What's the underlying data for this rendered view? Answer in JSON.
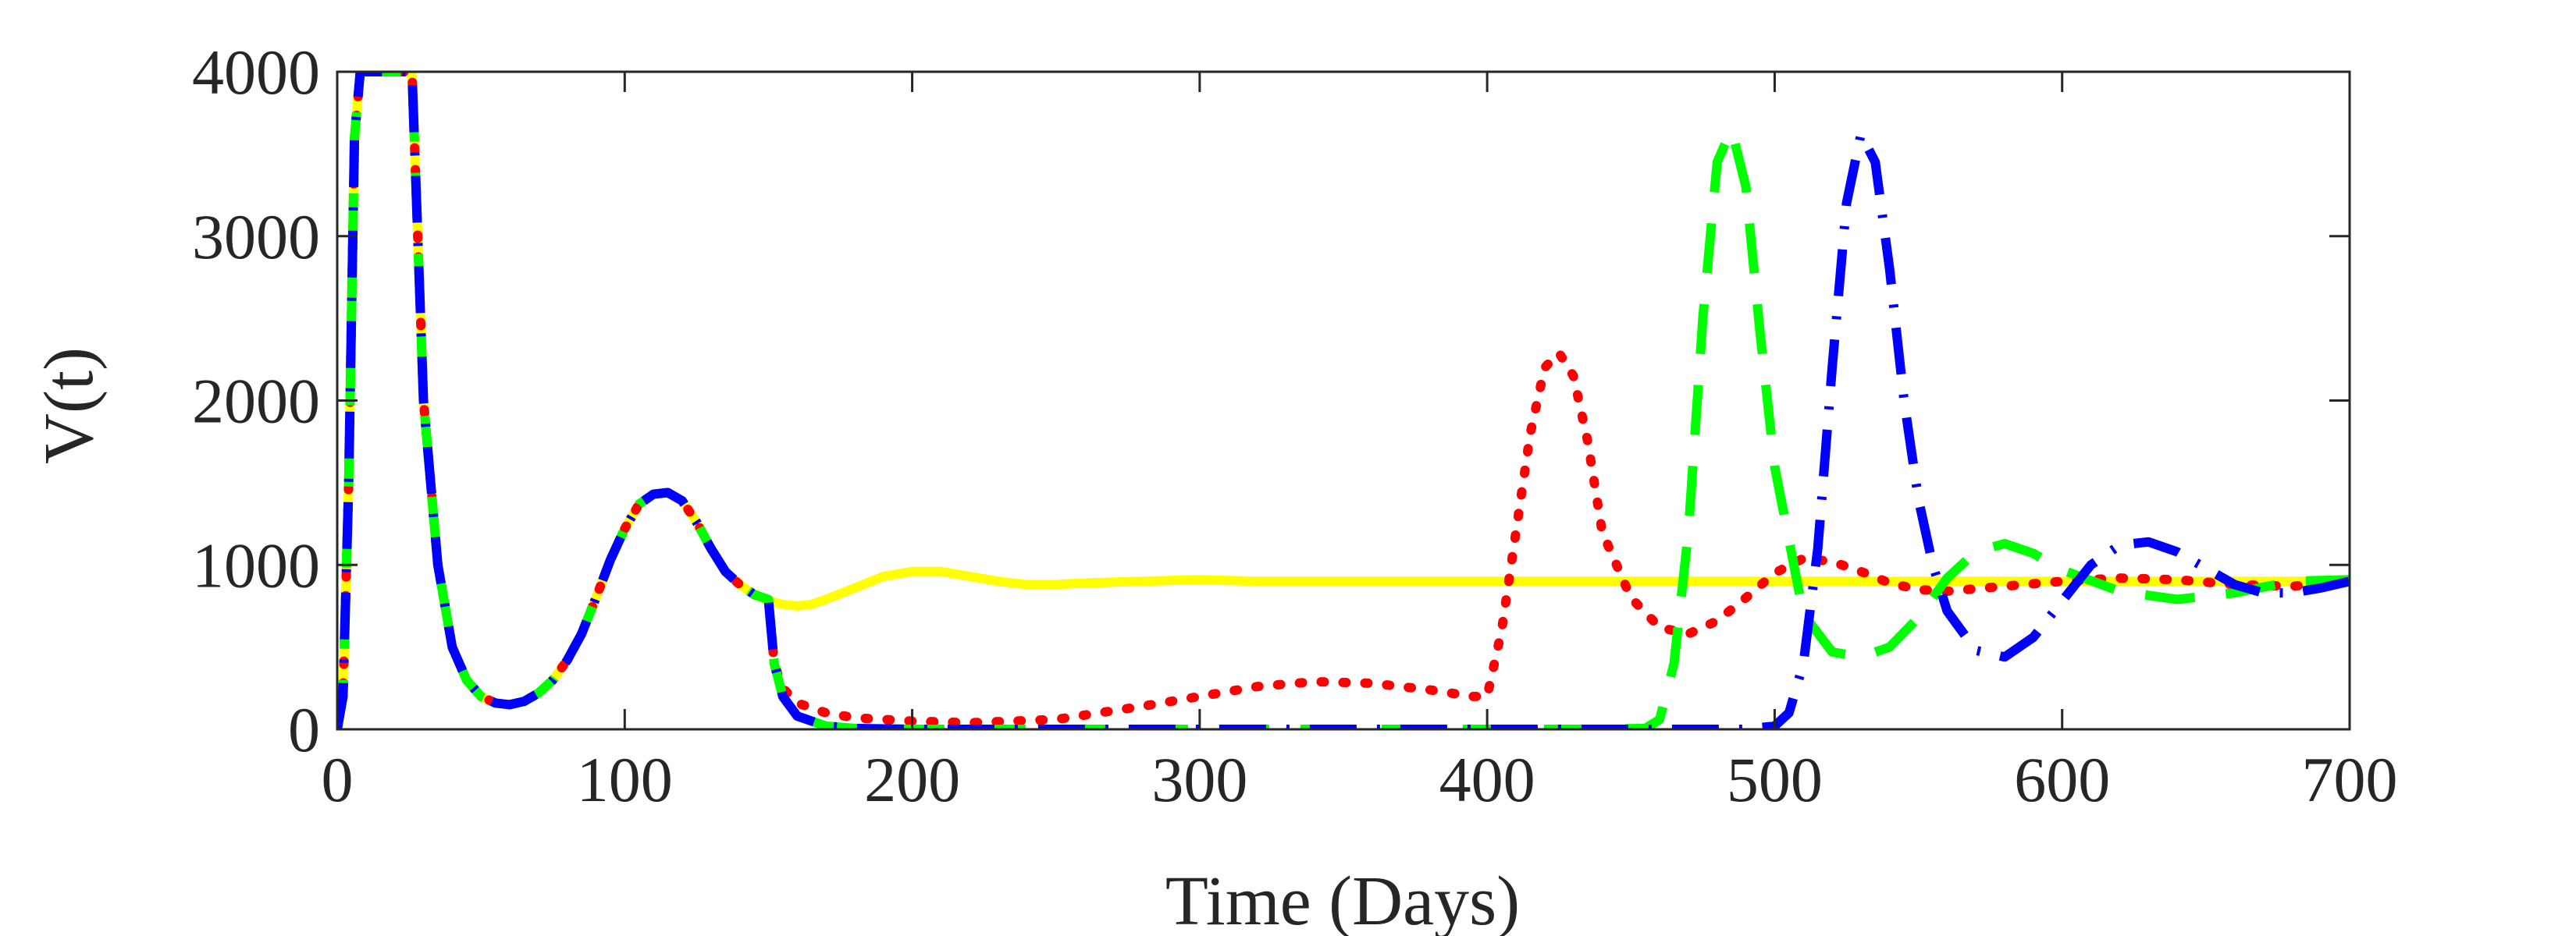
{
  "chart_data": {
    "type": "line",
    "title": "",
    "xlabel": "Time (Days)",
    "ylabel": "V(t)",
    "xlim": [
      0,
      700
    ],
    "ylim": [
      0,
      4000
    ],
    "xticks": [
      0,
      100,
      200,
      300,
      400,
      500,
      600,
      700
    ],
    "xtick_labels": [
      "0",
      "100",
      "200",
      "300",
      "400",
      "500",
      "600",
      "700"
    ],
    "yticks": [
      0,
      1000,
      2000,
      3000,
      4000
    ],
    "ytick_labels": [
      "0",
      "1000",
      "2000",
      "3000",
      "4000"
    ],
    "grid": false,
    "legend": "none",
    "series": [
      {
        "color": "#ffff00",
        "style": "solid",
        "x": [
          0,
          2,
          4,
          6,
          8,
          10,
          15,
          22,
          26,
          30,
          35,
          40,
          45,
          50,
          55,
          60,
          65,
          70,
          75,
          80,
          85,
          90,
          95,
          100,
          105,
          110,
          115,
          120,
          125,
          130,
          135,
          140,
          145,
          148,
          150,
          155,
          160,
          165,
          170,
          180,
          190,
          200,
          210,
          220,
          230,
          240,
          250,
          260,
          280,
          300,
          320,
          350,
          400,
          450,
          500,
          550,
          600,
          650,
          700
        ],
        "y": [
          0,
          200,
          1500,
          3600,
          4000,
          4000,
          4000,
          4000,
          4000,
          2000,
          1000,
          500,
          300,
          200,
          160,
          150,
          170,
          220,
          300,
          420,
          580,
          800,
          1030,
          1220,
          1370,
          1430,
          1440,
          1390,
          1260,
          1100,
          960,
          880,
          820,
          800,
          780,
          760,
          750,
          760,
          790,
          860,
          930,
          960,
          960,
          930,
          900,
          880,
          880,
          890,
          900,
          910,
          900,
          900,
          900,
          900,
          900,
          900,
          900,
          900,
          900
        ]
      },
      {
        "color": "#ff0000",
        "style": "dotted",
        "x": [
          0,
          2,
          4,
          6,
          8,
          10,
          15,
          22,
          26,
          30,
          35,
          40,
          45,
          50,
          55,
          60,
          65,
          70,
          75,
          80,
          85,
          90,
          95,
          100,
          105,
          110,
          115,
          120,
          125,
          130,
          135,
          140,
          145,
          150,
          152,
          155,
          160,
          170,
          180,
          200,
          220,
          250,
          280,
          300,
          320,
          340,
          360,
          380,
          395,
          400,
          405,
          410,
          415,
          420,
          425,
          430,
          435,
          440,
          450,
          460,
          470,
          480,
          490,
          500,
          510,
          520,
          530,
          540,
          550,
          560,
          580,
          600,
          620,
          640,
          660,
          680,
          700
        ],
        "y": [
          0,
          200,
          1500,
          3600,
          4000,
          4000,
          4000,
          4000,
          4000,
          2000,
          1000,
          500,
          300,
          200,
          160,
          150,
          170,
          220,
          300,
          420,
          580,
          800,
          1030,
          1220,
          1370,
          1430,
          1440,
          1390,
          1260,
          1100,
          960,
          880,
          820,
          790,
          400,
          250,
          160,
          100,
          70,
          50,
          40,
          60,
          140,
          200,
          260,
          290,
          280,
          240,
          200,
          200,
          600,
          1200,
          1800,
          2200,
          2290,
          2150,
          1750,
          1200,
          800,
          620,
          580,
          660,
          800,
          950,
          1040,
          1020,
          960,
          890,
          850,
          840,
          870,
          900,
          920,
          910,
          880,
          870,
          900
        ]
      },
      {
        "color": "#00ff00",
        "style": "dashed",
        "x": [
          0,
          2,
          4,
          6,
          8,
          10,
          15,
          22,
          26,
          30,
          35,
          40,
          45,
          50,
          55,
          60,
          65,
          70,
          75,
          80,
          85,
          90,
          95,
          100,
          105,
          110,
          115,
          120,
          125,
          130,
          135,
          140,
          145,
          150,
          152,
          155,
          160,
          170,
          180,
          200,
          250,
          300,
          350,
          400,
          440,
          455,
          460,
          465,
          470,
          475,
          480,
          485,
          490,
          495,
          500,
          510,
          520,
          530,
          540,
          550,
          560,
          570,
          580,
          590,
          600,
          620,
          640,
          660,
          680,
          700
        ],
        "y": [
          0,
          200,
          1500,
          3600,
          4000,
          4000,
          4000,
          4000,
          4000,
          2000,
          1000,
          500,
          300,
          200,
          160,
          150,
          170,
          220,
          300,
          420,
          580,
          800,
          1030,
          1220,
          1370,
          1430,
          1440,
          1390,
          1260,
          1100,
          960,
          880,
          820,
          790,
          400,
          200,
          80,
          20,
          5,
          0,
          0,
          0,
          0,
          0,
          0,
          5,
          60,
          400,
          1200,
          2500,
          3450,
          3650,
          3300,
          2400,
          1600,
          700,
          470,
          440,
          500,
          680,
          920,
          1080,
          1130,
          1070,
          970,
          840,
          790,
          830,
          900,
          910
        ]
      },
      {
        "color": "#0000ff",
        "style": "dashdot",
        "x": [
          0,
          2,
          4,
          6,
          8,
          10,
          15,
          22,
          26,
          30,
          35,
          40,
          45,
          50,
          55,
          60,
          65,
          70,
          75,
          80,
          85,
          90,
          95,
          100,
          105,
          110,
          115,
          120,
          125,
          130,
          135,
          140,
          145,
          150,
          152,
          155,
          160,
          170,
          180,
          200,
          250,
          300,
          350,
          400,
          450,
          490,
          500,
          505,
          510,
          515,
          520,
          525,
          530,
          535,
          540,
          545,
          550,
          555,
          560,
          570,
          580,
          590,
          600,
          610,
          620,
          630,
          640,
          650,
          660,
          670,
          680,
          690,
          700
        ],
        "y": [
          0,
          200,
          1500,
          3600,
          4000,
          4000,
          4000,
          4000,
          4000,
          2000,
          1000,
          500,
          300,
          200,
          160,
          150,
          170,
          220,
          300,
          420,
          580,
          800,
          1030,
          1220,
          1370,
          1430,
          1440,
          1390,
          1260,
          1100,
          960,
          880,
          820,
          790,
          400,
          200,
          80,
          20,
          5,
          0,
          0,
          0,
          0,
          0,
          0,
          0,
          20,
          100,
          400,
          1100,
          2200,
          3200,
          3620,
          3450,
          2800,
          2000,
          1400,
          1000,
          720,
          480,
          440,
          560,
          780,
          1000,
          1120,
          1140,
          1080,
          980,
          880,
          830,
          830,
          860,
          900
        ]
      }
    ]
  }
}
